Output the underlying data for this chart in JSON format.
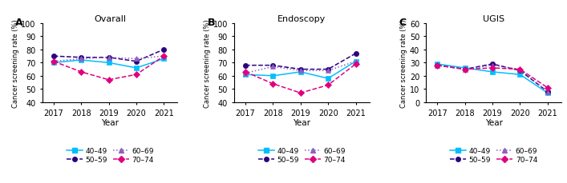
{
  "years": [
    2017,
    2018,
    2019,
    2020,
    2021
  ],
  "panels": [
    {
      "label": "A",
      "title": "Ovarall",
      "ylabel": "Cancer screening rate (%)",
      "ylim": [
        40,
        100
      ],
      "yticks": [
        40,
        50,
        60,
        70,
        80,
        90,
        100
      ],
      "series": {
        "40-49": [
          70,
          72,
          70,
          66,
          73
        ],
        "50-59": [
          75,
          74,
          74,
          71,
          80
        ],
        "60-69": [
          71,
          73,
          74,
          73,
          75
        ],
        "70-74": [
          71,
          63,
          57,
          61,
          75
        ]
      }
    },
    {
      "label": "B",
      "title": "Endoscopy",
      "ylabel": "Cancer screening rate (%)",
      "ylim": [
        40,
        100
      ],
      "yticks": [
        40,
        50,
        60,
        70,
        80,
        90,
        100
      ],
      "series": {
        "40-49": [
          61,
          60,
          63,
          58,
          71
        ],
        "50-59": [
          68,
          68,
          65,
          65,
          77
        ],
        "60-69": [
          62,
          67,
          64,
          64,
          71
        ],
        "70-74": [
          63,
          54,
          47,
          53,
          69
        ]
      }
    },
    {
      "label": "C",
      "title": "UGIS",
      "ylabel": "Cancer screening rate (%)",
      "ylim": [
        0,
        60
      ],
      "yticks": [
        0,
        10,
        20,
        30,
        40,
        50,
        60
      ],
      "series": {
        "40-49": [
          29,
          26,
          23,
          21,
          7
        ],
        "50-59": [
          28,
          25,
          29,
          24,
          8
        ],
        "60-69": [
          28,
          25,
          28,
          25,
          8
        ],
        "70-74": [
          28,
          25,
          26,
          25,
          11
        ]
      }
    }
  ],
  "series_styles": {
    "40-49": {
      "color": "#00BFFF",
      "linestyle": "-",
      "marker": "s",
      "markersize": 4.5
    },
    "50-59": {
      "color": "#2b0080",
      "linestyle": "--",
      "marker": "o",
      "markersize": 4.5
    },
    "60-69": {
      "color": "#9060c0",
      "linestyle": ":",
      "marker": "^",
      "markersize": 4.5
    },
    "70-74": {
      "color": "#e0007f",
      "linestyle": "--",
      "marker": "D",
      "markersize": 4.5
    }
  },
  "age_groups": [
    "40-49",
    "50-59",
    "60-69",
    "70-74"
  ]
}
